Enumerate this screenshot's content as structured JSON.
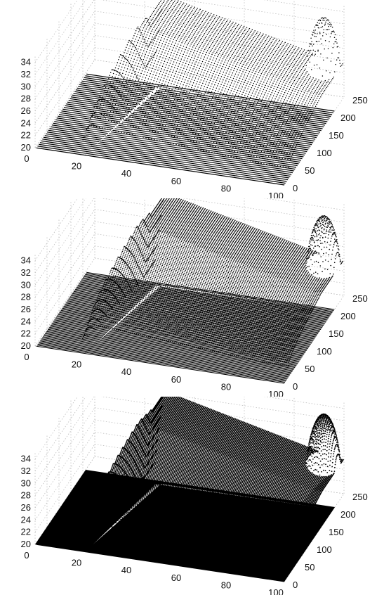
{
  "chart_data": [
    {
      "type": "scatter",
      "title": "",
      "xlabel": "",
      "ylabel": "",
      "zlabel": "",
      "x_ticks": [
        "0",
        "20",
        "40",
        "60",
        "80",
        "100"
      ],
      "y_ticks": [
        "0",
        "50",
        "100",
        "150",
        "200",
        "250"
      ],
      "z_ticks": [
        "20",
        "22",
        "24",
        "26",
        "28",
        "30",
        "32",
        "34"
      ],
      "xlim": [
        0,
        100
      ],
      "ylim": [
        0,
        250
      ],
      "zlim": [
        20,
        35
      ],
      "grid": true,
      "sampling": "sparse",
      "series": [
        {
          "description": "ridge along x=20-25",
          "x": [
            20,
            25,
            30
          ],
          "y": [
            40,
            140,
            200
          ],
          "z": [
            23,
            32,
            33
          ]
        },
        {
          "description": "peak near far corner",
          "x": [
            90,
            95,
            100
          ],
          "y": [
            200,
            225,
            250
          ],
          "z": [
            30,
            34,
            33
          ]
        }
      ]
    },
    {
      "type": "scatter",
      "title": "",
      "xlabel": "",
      "ylabel": "",
      "zlabel": "",
      "x_ticks": [
        "0",
        "20",
        "40",
        "60",
        "80",
        "100"
      ],
      "y_ticks": [
        "0",
        "50",
        "100",
        "150",
        "200",
        "250"
      ],
      "z_ticks": [
        "20",
        "22",
        "24",
        "26",
        "28",
        "30",
        "32",
        "34"
      ],
      "xlim": [
        0,
        100
      ],
      "ylim": [
        0,
        250
      ],
      "zlim": [
        20,
        35
      ],
      "grid": true,
      "sampling": "medium",
      "series": [
        {
          "description": "ridge along x=20-25",
          "x": [
            20,
            25,
            30
          ],
          "y": [
            40,
            140,
            200
          ],
          "z": [
            23,
            32,
            33
          ]
        },
        {
          "description": "peak near far corner",
          "x": [
            90,
            95,
            100
          ],
          "y": [
            200,
            225,
            250
          ],
          "z": [
            30,
            34,
            33
          ]
        }
      ]
    },
    {
      "type": "scatter",
      "title": "",
      "xlabel": "",
      "ylabel": "",
      "zlabel": "",
      "x_ticks": [
        "0",
        "20",
        "40",
        "60",
        "80",
        "100"
      ],
      "y_ticks": [
        "0",
        "50",
        "100",
        "150",
        "200",
        "250"
      ],
      "z_ticks": [
        "20",
        "22",
        "24",
        "26",
        "28",
        "30",
        "32",
        "34"
      ],
      "xlim": [
        0,
        100
      ],
      "ylim": [
        0,
        250
      ],
      "zlim": [
        20,
        35
      ],
      "grid": true,
      "sampling": "dense",
      "series": [
        {
          "description": "ridge along x=20-25",
          "x": [
            20,
            25,
            30
          ],
          "y": [
            40,
            140,
            200
          ],
          "z": [
            23,
            32,
            33
          ]
        },
        {
          "description": "peak near far corner",
          "x": [
            90,
            95,
            100
          ],
          "y": [
            200,
            225,
            250
          ],
          "z": [
            30,
            34,
            33
          ]
        }
      ]
    }
  ]
}
